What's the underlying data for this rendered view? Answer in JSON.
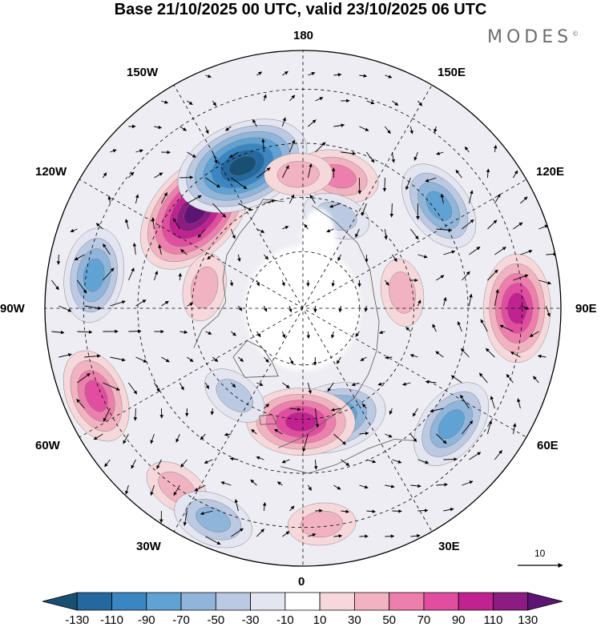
{
  "header": {
    "title": "Base 21/10/2025 00 UTC, valid 23/10/2025 06 UTC",
    "brand": "MODES",
    "brand_mark": "©"
  },
  "map": {
    "projection": "north polar stereographic",
    "longitude_labels": {
      "top": "180",
      "top_right": "150E",
      "upper_right": "120E",
      "right": "90E",
      "lower_right": "60E",
      "bottom_right": "30E",
      "bottom": "0",
      "bottom_left": "30W",
      "lower_left": "60W",
      "left": "90W",
      "upper_left": "120W",
      "top_left": "150W"
    }
  },
  "vector_scale": {
    "label": "10"
  },
  "colorbar": {
    "ticks": [
      "-130",
      "-110",
      "-90",
      "-70",
      "-50",
      "-30",
      "-10",
      "10",
      "30",
      "50",
      "70",
      "90",
      "110",
      "130"
    ],
    "colors": [
      "#1a4f74",
      "#2468a0",
      "#3a86c2",
      "#5fa2d3",
      "#8fb5db",
      "#bcc9e2",
      "#e3e5f0",
      "#ffffff",
      "#f7d8da",
      "#f2b3c0",
      "#ec7fab",
      "#e14ea0",
      "#c0238f",
      "#8c1b82",
      "#5e1472"
    ]
  },
  "anomalies": [
    {
      "value": 130,
      "lon": -132,
      "r": 0.56
    },
    {
      "value": -130,
      "lon": -157,
      "r": 0.6
    },
    {
      "value": 50,
      "lon": 165,
      "r": 0.53
    },
    {
      "value": -70,
      "lon": 127,
      "r": 0.66
    },
    {
      "value": 90,
      "lon": 90,
      "r": 0.83
    },
    {
      "value": -70,
      "lon": 52,
      "r": 0.73
    },
    {
      "value": -90,
      "lon": 15,
      "r": 0.44
    },
    {
      "value": 90,
      "lon": -1,
      "r": 0.44
    },
    {
      "value": 70,
      "lon": -67,
      "r": 0.87
    },
    {
      "value": -70,
      "lon": -99,
      "r": 0.82
    },
    {
      "value": 30,
      "lon": -35,
      "r": 0.85
    },
    {
      "value": -50,
      "lon": -23,
      "r": 0.89
    },
    {
      "value": 30,
      "lon": 99,
      "r": 0.39
    },
    {
      "value": 30,
      "lon": -102,
      "r": 0.39
    },
    {
      "value": -30,
      "lon": -38,
      "r": 0.43
    },
    {
      "value": -30,
      "lon": 160,
      "r": 0.38
    },
    {
      "value": 30,
      "lon": -178,
      "r": 0.52
    },
    {
      "value": 30,
      "lon": 5,
      "r": 0.84
    }
  ]
}
